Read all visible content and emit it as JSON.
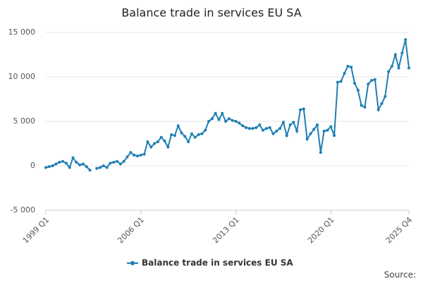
{
  "chart_data": {
    "type": "line",
    "title": "Balance trade in services EU SA",
    "categories": [
      "1999 Q1",
      null,
      null,
      null,
      null,
      null,
      null,
      null,
      null,
      null,
      null,
      null,
      null,
      null,
      null,
      null,
      null,
      null,
      null,
      null,
      null,
      null,
      null,
      null,
      null,
      null,
      null,
      null,
      "2006 Q1",
      null,
      null,
      null,
      null,
      null,
      null,
      null,
      null,
      null,
      null,
      null,
      null,
      null,
      null,
      null,
      null,
      null,
      null,
      null,
      null,
      null,
      null,
      null,
      null,
      null,
      null,
      null,
      "2013 Q1",
      null,
      null,
      null,
      null,
      null,
      null,
      null,
      null,
      null,
      null,
      null,
      null,
      null,
      null,
      null,
      null,
      null,
      null,
      null,
      null,
      null,
      null,
      null,
      null,
      null,
      null,
      null,
      "2020 Q1",
      null,
      null,
      null,
      null,
      null,
      null,
      null,
      null,
      null,
      null,
      null,
      null,
      null,
      null,
      null,
      null,
      null,
      null,
      null,
      null,
      null,
      null,
      "2025 Q4"
    ],
    "series": [
      {
        "name": "Balance trade in services EU SA",
        "color": "#1f7fb4",
        "values": [
          -200,
          -100,
          0,
          200,
          400,
          500,
          300,
          -200,
          900,
          400,
          100,
          200,
          -100,
          -500,
          null,
          -300,
          -200,
          0,
          -200,
          300,
          400,
          500,
          200,
          500,
          1000,
          1500,
          1200,
          1100,
          1200,
          1300,
          2700,
          2100,
          2500,
          2700,
          3200,
          2800,
          2100,
          3500,
          3400,
          4500,
          3700,
          3300,
          2700,
          3600,
          3200,
          3500,
          3600,
          4000,
          5000,
          5300,
          5900,
          5200,
          5900,
          5000,
          5300,
          5100,
          5000,
          4800,
          4500,
          4300,
          4200,
          4200,
          4300,
          4600,
          4000,
          4200,
          4300,
          3600,
          3900,
          4200,
          4900,
          3400,
          4600,
          4900,
          3900,
          6300,
          6400,
          3000,
          3600,
          4100,
          4600,
          1500,
          3900,
          4000,
          4400,
          3400,
          9400,
          9500,
          10400,
          11200,
          11100,
          9300,
          8500,
          6800,
          6600,
          9200,
          9600,
          9700,
          6300,
          7000,
          7800,
          10600,
          11200,
          12500,
          11000,
          12700,
          14200,
          11000
        ]
      }
    ],
    "ylim": [
      -5000,
      15000
    ],
    "yticks": [
      {
        "value": -5000,
        "label": "-5 000"
      },
      0,
      {
        "value": 5000,
        "label": "5 000"
      },
      {
        "value": 10000,
        "label": "10 000"
      },
      {
        "value": 15000,
        "label": "15 000"
      }
    ],
    "grid": true,
    "legend": "bottom",
    "source": "Source:"
  }
}
